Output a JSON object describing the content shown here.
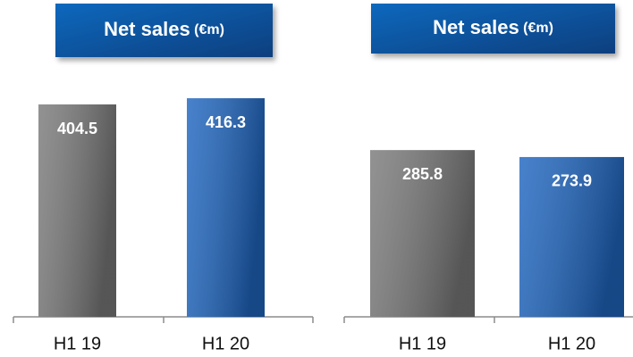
{
  "chart_data": [
    {
      "type": "bar",
      "title": "Net sales",
      "unit": "(€m)",
      "categories": [
        "H1 19",
        "H1 20"
      ],
      "values": [
        404.5,
        416.3
      ],
      "colors": [
        "#7a7a7a",
        "#1f66c0"
      ],
      "ylim": [
        0,
        600
      ]
    },
    {
      "type": "bar",
      "title": "Net sales",
      "unit": "(€m)",
      "categories": [
        "H1 19",
        "H1 20"
      ],
      "values": [
        285.8,
        273.9
      ],
      "colors": [
        "#7a7a7a",
        "#1f66c0"
      ],
      "ylim": [
        0,
        540
      ]
    }
  ]
}
